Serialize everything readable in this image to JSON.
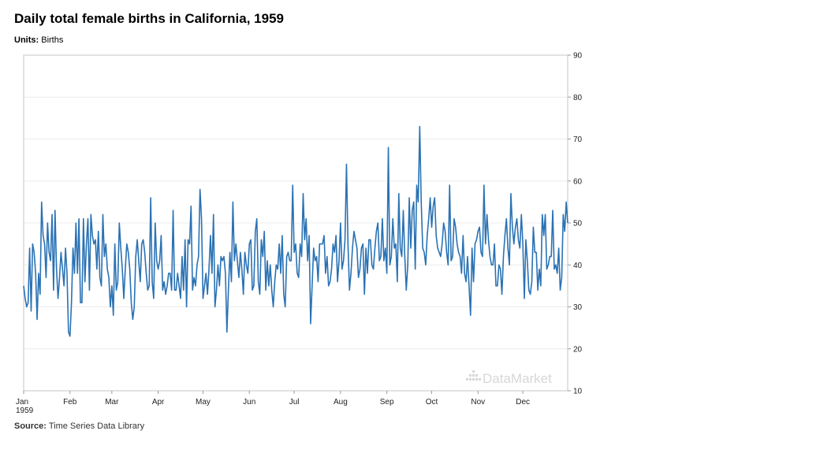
{
  "header": {
    "title": "Daily total female births in California, 1959",
    "units_label": "Units:",
    "units_value": "Births"
  },
  "footer": {
    "source_label": "Source:",
    "source_value": "Time Series Data Library"
  },
  "watermark": "DataMarket",
  "chart_data": {
    "type": "line",
    "title": "Daily total female births in California, 1959",
    "ylabel": "Births",
    "ylim": [
      10,
      90
    ],
    "y_ticks": [
      10,
      20,
      30,
      40,
      50,
      60,
      70,
      80,
      90
    ],
    "y_axis_position": "right",
    "grid": true,
    "x_ticks": [
      "Jan 1959",
      "Feb",
      "Mar",
      "Apr",
      "May",
      "Jun",
      "Jul",
      "Aug",
      "Sep",
      "Oct",
      "Nov",
      "Dec"
    ],
    "x_tick_labels": [
      {
        "label": "Jan",
        "sub": "1959",
        "day": 1
      },
      {
        "label": "Feb",
        "day": 32
      },
      {
        "label": "Mar",
        "day": 60
      },
      {
        "label": "Apr",
        "day": 91
      },
      {
        "label": "May",
        "day": 121
      },
      {
        "label": "Jun",
        "day": 152
      },
      {
        "label": "Jul",
        "day": 182
      },
      {
        "label": "Aug",
        "day": 213
      },
      {
        "label": "Sep",
        "day": 244
      },
      {
        "label": "Oct",
        "day": 274
      },
      {
        "label": "Nov",
        "day": 305
      },
      {
        "label": "Dec",
        "day": 335
      }
    ],
    "line_color": "#2a72b4",
    "series": [
      {
        "values": [
          35,
          32,
          30,
          31,
          44,
          29,
          45,
          43,
          38,
          27,
          38,
          33,
          55,
          47,
          45,
          37,
          50,
          43,
          41,
          52,
          34,
          53,
          39,
          32,
          37,
          43,
          39,
          35,
          44,
          38,
          24,
          23,
          31,
          44,
          38,
          50,
          38,
          51,
          31,
          31,
          51,
          36,
          45,
          51,
          34,
          52,
          47,
          45,
          46,
          39,
          48,
          37,
          35,
          52,
          42,
          45,
          39,
          37,
          30,
          35,
          28,
          45,
          34,
          36,
          50,
          44,
          39,
          32,
          39,
          45,
          43,
          39,
          31,
          27,
          30,
          42,
          46,
          41,
          36,
          45,
          46,
          43,
          38,
          34,
          35,
          56,
          36,
          32,
          50,
          41,
          39,
          41,
          47,
          34,
          36,
          33,
          35,
          38,
          38,
          34,
          53,
          34,
          34,
          38,
          35,
          32,
          42,
          34,
          46,
          30,
          46,
          45,
          54,
          34,
          37,
          35,
          40,
          42,
          58,
          51,
          32,
          35,
          38,
          33,
          39,
          47,
          38,
          52,
          30,
          34,
          40,
          35,
          42,
          41,
          42,
          38,
          24,
          34,
          43,
          36,
          55,
          41,
          45,
          41,
          37,
          43,
          39,
          33,
          43,
          40,
          38,
          45,
          46,
          34,
          35,
          48,
          51,
          36,
          33,
          46,
          42,
          48,
          34,
          41,
          35,
          40,
          34,
          30,
          36,
          40,
          39,
          45,
          38,
          47,
          33,
          30,
          42,
          43,
          41,
          41,
          59,
          43,
          45,
          38,
          37,
          45,
          42,
          57,
          46,
          51,
          41,
          47,
          26,
          35,
          44,
          41,
          42,
          36,
          45,
          45,
          45,
          47,
          38,
          42,
          35,
          36,
          39,
          45,
          43,
          47,
          36,
          41,
          50,
          39,
          41,
          46,
          64,
          45,
          34,
          38,
          44,
          48,
          46,
          44,
          37,
          39,
          44,
          45,
          33,
          44,
          38,
          46,
          46,
          40,
          39,
          44,
          48,
          50,
          41,
          42,
          51,
          41,
          44,
          38,
          68,
          40,
          42,
          51,
          44,
          45,
          36,
          57,
          44,
          42,
          53,
          42,
          34,
          40,
          56,
          44,
          53,
          55,
          39,
          59,
          55,
          73,
          55,
          44,
          43,
          40,
          47,
          51,
          56,
          49,
          54,
          56,
          47,
          44,
          43,
          42,
          45,
          50,
          48,
          43,
          40,
          59,
          41,
          42,
          51,
          49,
          45,
          43,
          42,
          38,
          47,
          38,
          36,
          42,
          35,
          28,
          44,
          36,
          45,
          46,
          48,
          49,
          43,
          42,
          59,
          45,
          52,
          46,
          42,
          40,
          40,
          45,
          35,
          35,
          40,
          39,
          33,
          42,
          47,
          51,
          44,
          40,
          57,
          49,
          45,
          49,
          51,
          46,
          44,
          52,
          45,
          32,
          46,
          41,
          34,
          33,
          36,
          49,
          43,
          43,
          34,
          39,
          35,
          52,
          47,
          52,
          39,
          40,
          42,
          42,
          53,
          39,
          40,
          38,
          44,
          34,
          37,
          52,
          48,
          55,
          50
        ]
      }
    ]
  }
}
